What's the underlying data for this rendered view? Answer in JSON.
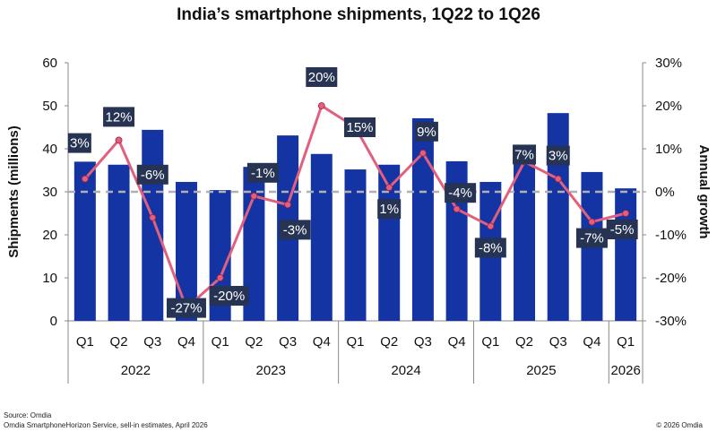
{
  "chart_data": {
    "type": "bar+line",
    "title": "India’s smartphone shipments, 1Q22 to 1Q26",
    "ylabel": "Shipments (millions)",
    "y2label": "Annual growth",
    "ylim": [
      0,
      60
    ],
    "yticks": [
      "0",
      "10",
      "20",
      "30",
      "40",
      "50",
      "60"
    ],
    "y2lim": [
      -30,
      30
    ],
    "y2ticks": [
      "-30%",
      "-20%",
      "-10%",
      "0%",
      "10%",
      "20%",
      "30%"
    ],
    "categories": [
      "Q1",
      "Q2",
      "Q3",
      "Q4",
      "Q1",
      "Q2",
      "Q3",
      "Q4",
      "Q1",
      "Q2",
      "Q3",
      "Q4",
      "Q1",
      "Q2",
      "Q3",
      "Q4",
      "Q1"
    ],
    "years": [
      {
        "label": "2022",
        "count": 4
      },
      {
        "label": "2023",
        "count": 4
      },
      {
        "label": "2024",
        "count": 4
      },
      {
        "label": "2025",
        "count": 4
      },
      {
        "label": "2026",
        "count": 1
      }
    ],
    "series": [
      {
        "type": "bar",
        "values": [
          37,
          36.3,
          44.4,
          32.3,
          30.4,
          35.8,
          43.1,
          38.8,
          35.2,
          36.3,
          47.1,
          37.1,
          32.3,
          38.8,
          48.3,
          34.6,
          30.8
        ],
        "color": "#1434A4"
      },
      {
        "type": "line",
        "axis": "right",
        "values": [
          3,
          12,
          -6,
          -27,
          -20,
          -1,
          -3,
          20,
          15,
          1,
          9,
          -4,
          -8,
          7,
          3,
          -7,
          -5
        ],
        "labels": [
          "3%",
          "12%",
          "-6%",
          "-27%",
          "-20%",
          "-1%",
          "-3%",
          "20%",
          "15%",
          "1%",
          "9%",
          "-4%",
          "-8%",
          "7%",
          "3%",
          "-7%",
          "-5%"
        ],
        "color": "#E0607E"
      }
    ],
    "reference_line": {
      "axis": "right",
      "value": 0,
      "style": "dashed"
    },
    "grid": false
  },
  "footer": {
    "source": "Source: Omdia",
    "note": "Omdia SmartphoneHorizon Service, sell-in estimates, April 2026",
    "copyright": "© 2026 Omdia"
  },
  "colors": {
    "bar": "#1434A4",
    "line": "#E0607E",
    "label_bg": "#263352"
  }
}
